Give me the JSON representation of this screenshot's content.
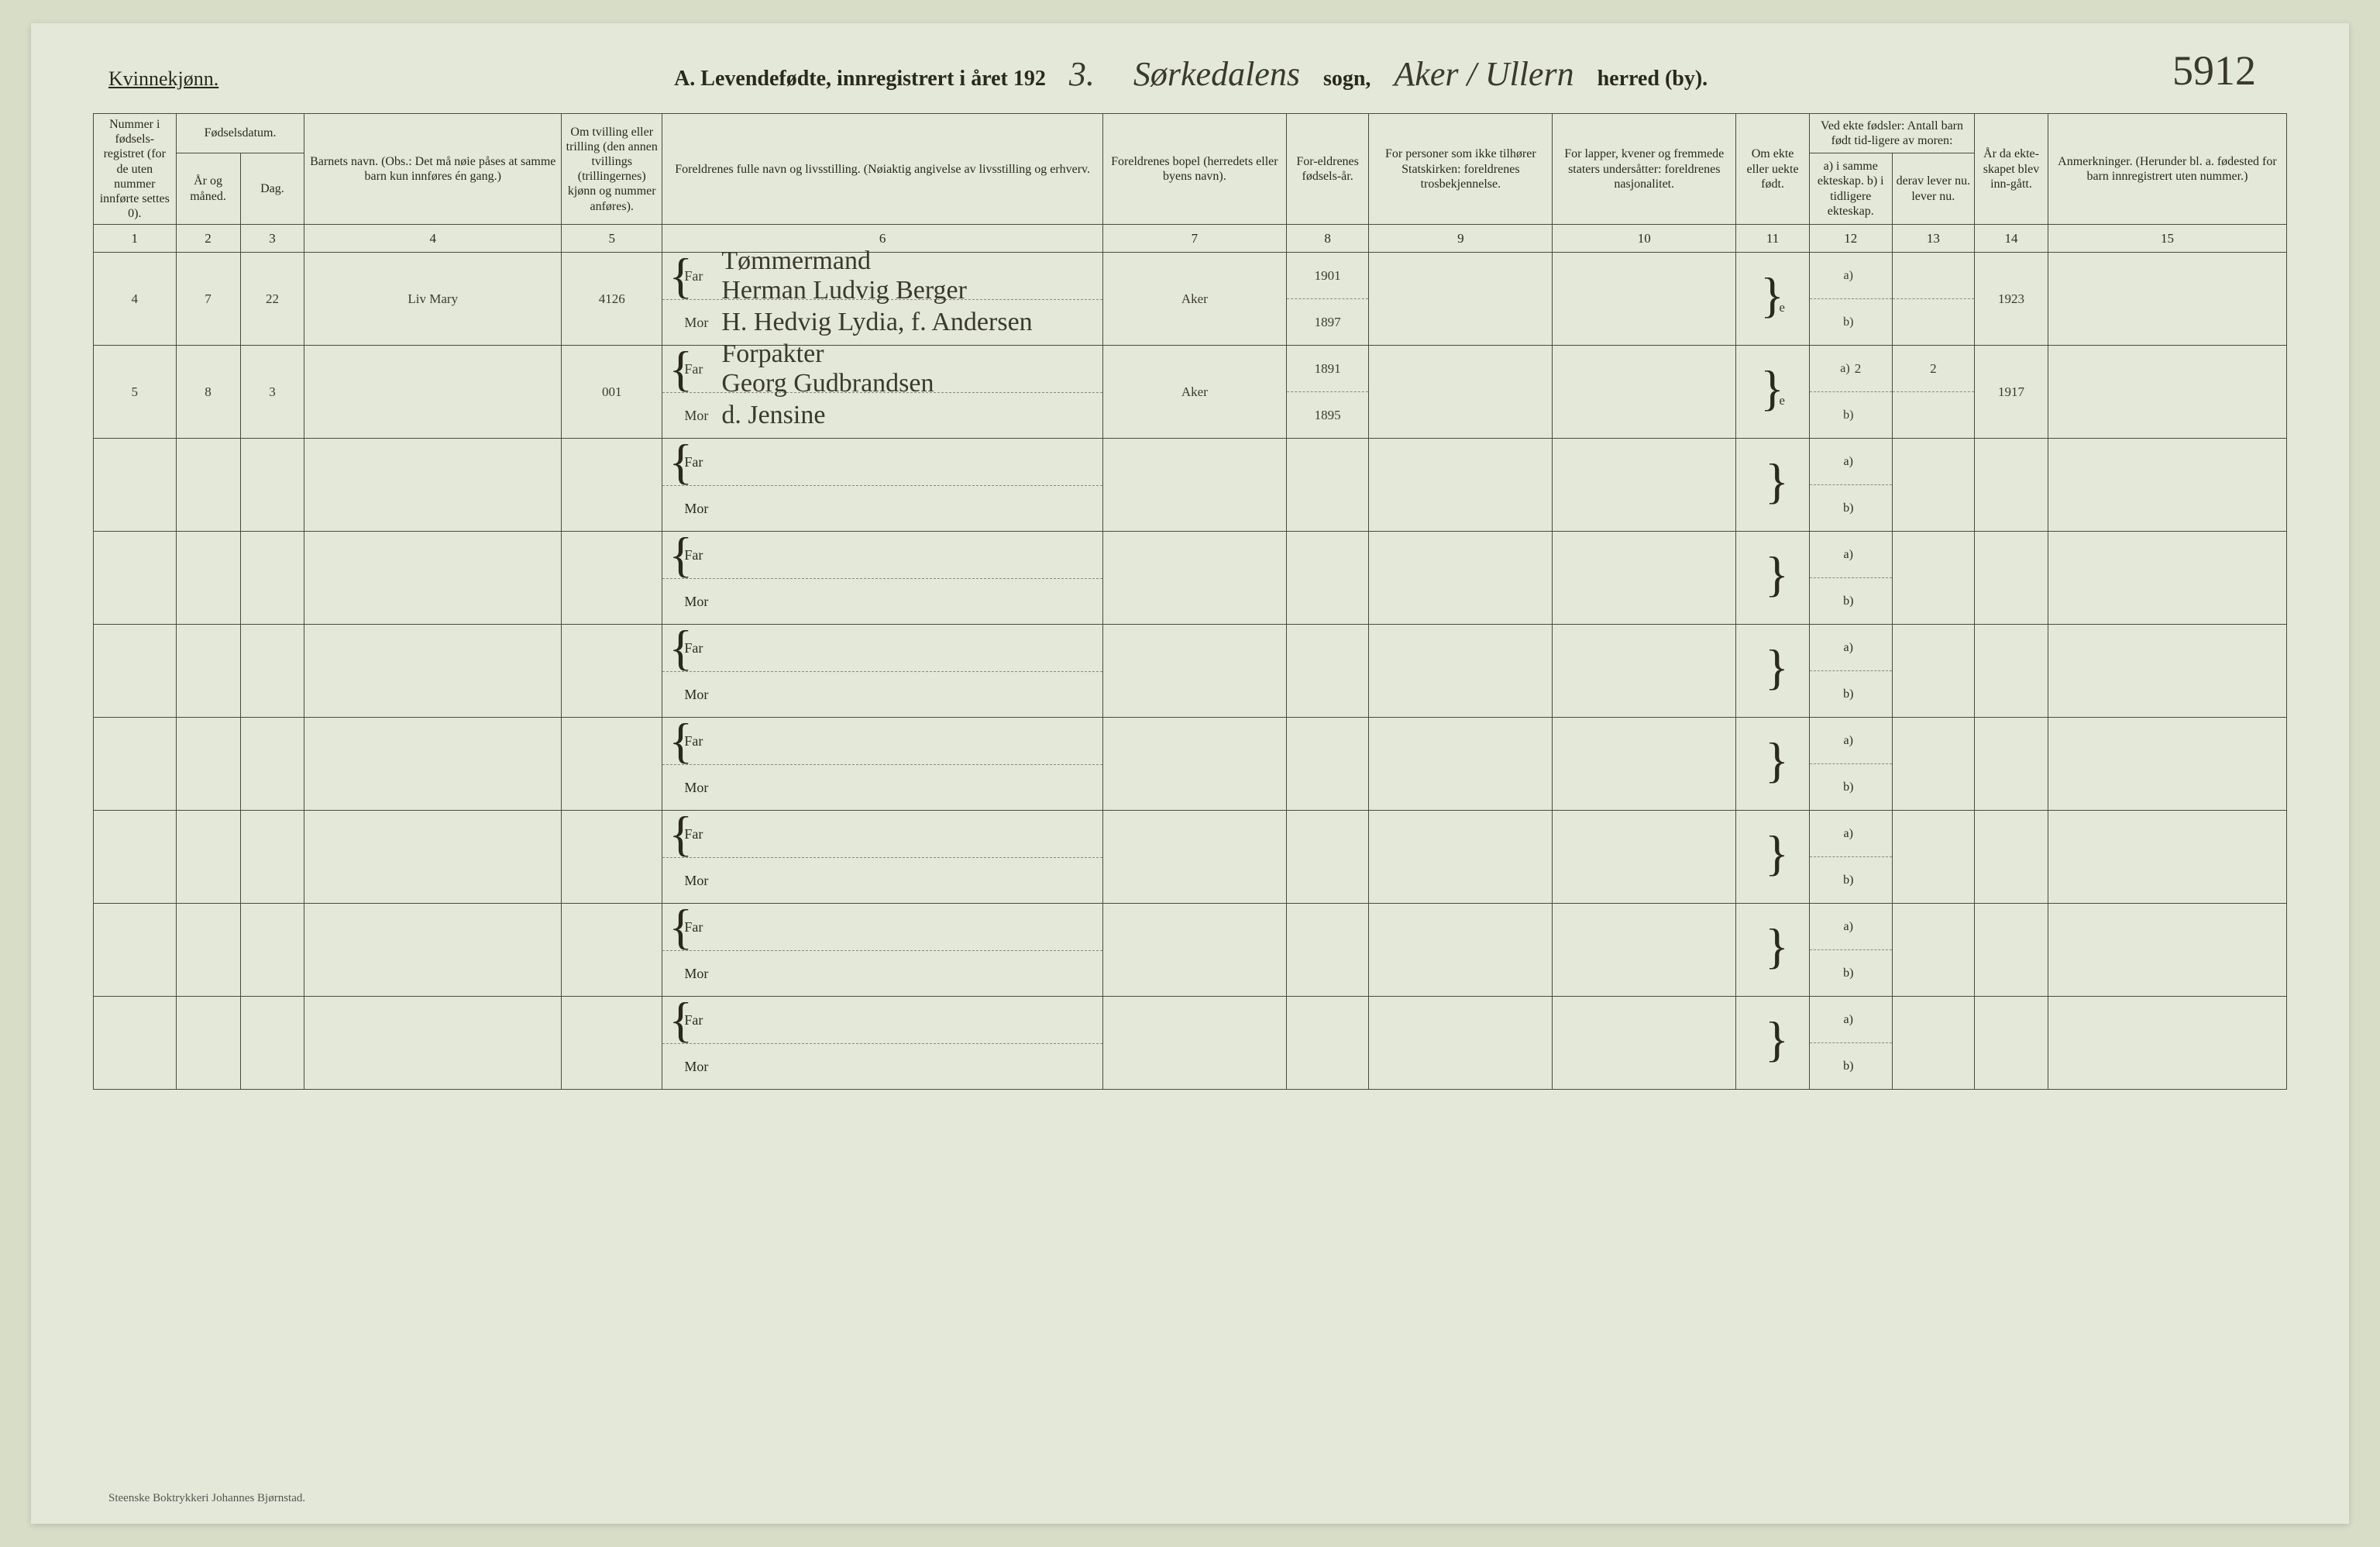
{
  "ref_number": "5912",
  "gender_label": "Kvinnekjønn.",
  "title_prefix": "A.  Levendefødte, innregistrert i året 192",
  "year_suffix": "3.",
  "sogn_written": "Sørkedalens",
  "sogn_label": "sogn,",
  "herred_written": "Aker / Ullern",
  "herred_label": "herred (by).",
  "headers": {
    "c1": "Nummer i fødsels-registret (for de uten nummer innførte settes 0).",
    "c2_3_top": "Fødselsdatum.",
    "c2": "År og måned.",
    "c3": "Dag.",
    "c4": "Barnets navn.\n(Obs.: Det må nøie påses at samme barn kun innføres én gang.)",
    "c5": "Om tvilling eller trilling (den annen tvillings (trillingernes) kjønn og nummer anføres).",
    "c6": "Foreldrenes fulle navn og livsstilling.\n(Nøiaktig angivelse av livsstilling og erhverv.",
    "c7": "Foreldrenes bopel (herredets eller byens navn).",
    "c8": "For-eldrenes fødsels-år.",
    "c9": "For personer som ikke tilhører Statskirken: foreldrenes trosbekjennelse.",
    "c10": "For lapper, kvener og fremmede staters undersåtter: foreldrenes nasjonalitet.",
    "c11": "Om ekte eller uekte født.",
    "c12_13_top": "Ved ekte fødsler: Antall barn født tid-ligere av moren:",
    "c12": "a) i samme ekteskap.\nb) i tidligere ekteskap.",
    "c13": "derav lever nu.\nlever nu.",
    "c14": "År da ekte-skapet blev inn-gått.",
    "c15": "Anmerkninger.\n(Herunder bl. a. fødested for barn innregistrert uten nummer.)"
  },
  "colnums": [
    "1",
    "2",
    "3",
    "4",
    "5",
    "6",
    "7",
    "8",
    "9",
    "10",
    "11",
    "12",
    "13",
    "14",
    "15"
  ],
  "far_label": "Far",
  "mor_label": "Mor",
  "a_label": "a)",
  "b_label": "b)",
  "rows": [
    {
      "num": "4",
      "year_month": "7",
      "day": "22",
      "child_name": "Liv Mary",
      "twin": "4126",
      "far_occupation": "Tømmermand",
      "far_name": "Herman Ludvig Berger",
      "mor_name": "H. Hedvig Lydia, f. Andersen",
      "residence": "Aker",
      "far_year": "1901",
      "mor_year": "1897",
      "religion": "",
      "nationality": "",
      "ekte": "e",
      "a_val": "",
      "b_val": "",
      "a13": "",
      "b13": "",
      "marriage_year": "1923",
      "remarks": ""
    },
    {
      "num": "5",
      "year_month": "8",
      "day": "3",
      "child_name": "",
      "twin": "001",
      "far_occupation": "Forpakter",
      "far_name": "Georg Gudbrandsen",
      "mor_name": "d. Jensine",
      "residence": "Aker",
      "far_year": "1891",
      "mor_year": "1895",
      "religion": "",
      "nationality": "",
      "ekte": "e",
      "a_val": "2",
      "b_val": "",
      "a13": "2",
      "b13": "",
      "marriage_year": "1917",
      "remarks": ""
    }
  ],
  "empty_row_count": 7,
  "footer": "Steenske Boktrykkeri Johannes Bjørnstad.",
  "colors": {
    "page_bg": "#e4e8d8",
    "body_bg": "#d8ddc8",
    "ink": "#2a2a1a",
    "handwriting": "#3a3a2a",
    "border": "#4a4a3a"
  }
}
